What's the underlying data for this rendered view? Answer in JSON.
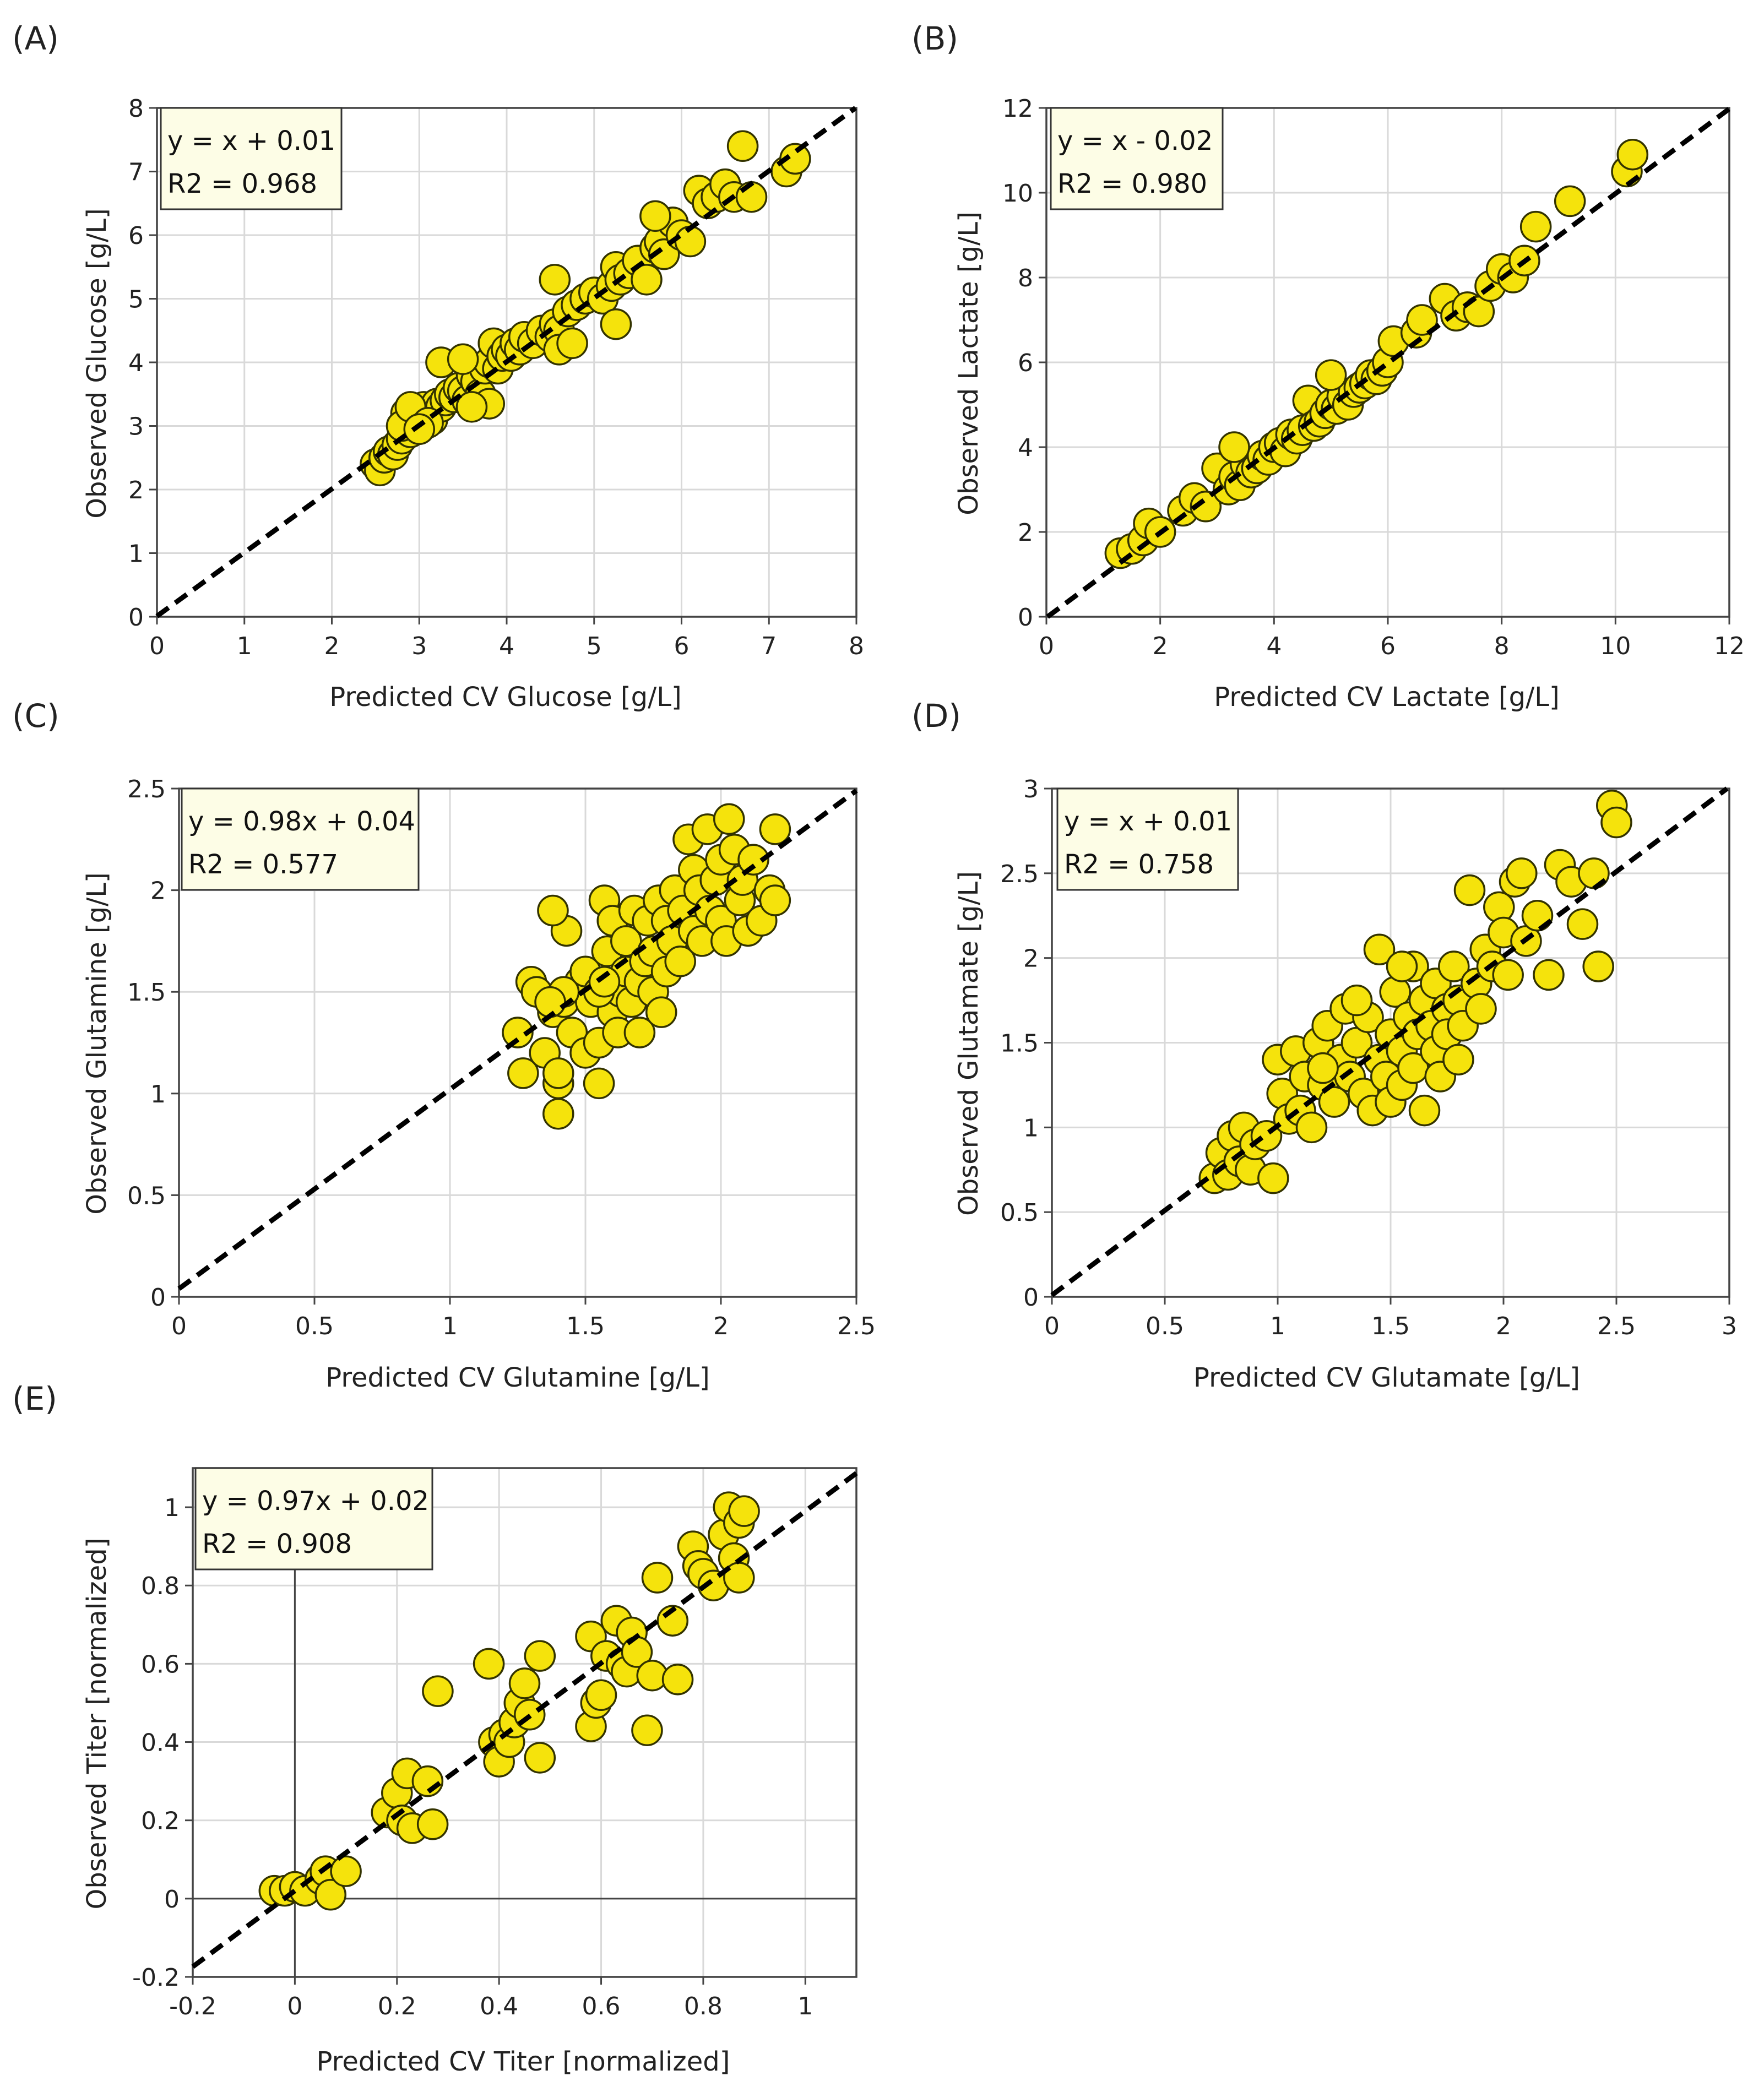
{
  "figure": {
    "panels": [
      {
        "label": "(A)",
        "equation": "y = x + 0.01",
        "r2": "R2 = 0.968"
      },
      {
        "label": "(B)",
        "equation": "y = x - 0.02",
        "r2": "R2 = 0.980"
      },
      {
        "label": "(C)",
        "equation": "y = 0.98x + 0.04",
        "r2": "R2 = 0.577"
      },
      {
        "label": "(D)",
        "equation": "y = x + 0.01",
        "r2": "R2 = 0.758"
      },
      {
        "label": "(E)",
        "equation": "y = 0.97x + 0.02",
        "r2": "R2 = 0.908"
      }
    ]
  },
  "colors": {
    "marker_fill": "#f5e30c",
    "marker_edge": "#333300",
    "box_fill": "#fdfde6",
    "grid": "#d9d9d9"
  },
  "chart_data": [
    {
      "type": "scatter",
      "panel": "(A)",
      "xlabel": "Predicted CV Glucose [g/L]",
      "ylabel": "Observed Glucose [g/L]",
      "xlim": [
        0,
        8
      ],
      "ylim": [
        0,
        8
      ],
      "xticks": [
        0,
        1,
        2,
        3,
        4,
        5,
        6,
        7,
        8
      ],
      "yticks": [
        0,
        1,
        2,
        3,
        4,
        5,
        6,
        7,
        8
      ],
      "fit": {
        "slope": 1.0,
        "intercept": 0.01
      },
      "annotation": [
        "y = x + 0.01",
        "R2 = 0.968"
      ],
      "x": [
        2.5,
        2.55,
        2.6,
        2.65,
        2.7,
        2.75,
        2.8,
        2.85,
        2.9,
        2.95,
        3.0,
        3.05,
        3.1,
        3.15,
        3.2,
        3.25,
        3.3,
        3.35,
        3.4,
        3.45,
        3.5,
        3.55,
        3.6,
        3.65,
        3.7,
        3.75,
        3.8,
        3.85,
        3.9,
        3.95,
        4.0,
        4.05,
        4.1,
        4.15,
        4.2,
        4.3,
        4.4,
        4.5,
        4.55,
        4.6,
        4.7,
        4.8,
        4.9,
        5.0,
        5.1,
        5.2,
        5.25,
        5.3,
        5.4,
        5.5,
        5.6,
        5.7,
        5.75,
        5.8,
        5.9,
        6.0,
        6.1,
        6.2,
        6.3,
        6.4,
        6.5,
        6.6,
        6.7,
        6.8,
        7.2,
        7.3,
        3.25,
        4.55,
        5.25,
        3.8,
        2.8,
        2.9,
        3.1,
        3.0,
        3.5,
        3.6,
        4.6,
        4.75,
        5.7
      ],
      "y": [
        2.4,
        2.3,
        2.5,
        2.6,
        2.55,
        2.7,
        2.8,
        3.2,
        2.9,
        3.1,
        3.0,
        3.3,
        3.2,
        3.1,
        3.35,
        3.3,
        3.4,
        3.5,
        3.45,
        3.6,
        3.55,
        3.4,
        3.8,
        3.7,
        3.5,
        3.9,
        4.0,
        4.3,
        3.9,
        4.1,
        4.2,
        4.1,
        4.3,
        4.2,
        4.4,
        4.3,
        4.5,
        4.4,
        4.6,
        4.5,
        4.8,
        4.9,
        5.0,
        5.1,
        5.0,
        5.2,
        5.5,
        5.3,
        5.4,
        5.6,
        5.3,
        5.8,
        5.9,
        5.7,
        6.2,
        6.0,
        5.9,
        6.7,
        6.5,
        6.6,
        6.8,
        6.6,
        7.4,
        6.6,
        7.0,
        7.2,
        4.0,
        5.3,
        4.6,
        3.35,
        3.0,
        3.3,
        3.05,
        2.95,
        4.05,
        3.3,
        4.2,
        4.3,
        6.3
      ]
    },
    {
      "type": "scatter",
      "panel": "(B)",
      "xlabel": "Predicted CV Lactate [g/L]",
      "ylabel": "Observed Lactate [g/L]",
      "xlim": [
        0,
        12
      ],
      "ylim": [
        0,
        12
      ],
      "xticks": [
        0,
        2,
        4,
        6,
        8,
        10,
        12
      ],
      "yticks": [
        0,
        2,
        4,
        6,
        8,
        10,
        12
      ],
      "fit": {
        "slope": 1.0,
        "intercept": -0.02
      },
      "annotation": [
        "y = x - 0.02",
        "R2 = 0.980"
      ],
      "x": [
        1.3,
        1.5,
        1.7,
        1.8,
        2.0,
        2.4,
        2.6,
        2.8,
        3.0,
        3.2,
        3.3,
        3.4,
        3.5,
        3.6,
        3.7,
        3.8,
        3.9,
        4.0,
        4.1,
        4.2,
        4.3,
        4.4,
        4.5,
        4.6,
        4.7,
        4.8,
        4.9,
        5.0,
        5.1,
        5.2,
        5.3,
        5.4,
        5.5,
        5.6,
        5.7,
        5.8,
        5.9,
        6.0,
        6.1,
        6.5,
        6.6,
        7.0,
        7.2,
        7.4,
        7.6,
        7.8,
        8.0,
        8.2,
        8.4,
        8.6,
        9.2,
        10.2,
        10.3,
        3.3,
        5.0
      ],
      "y": [
        1.5,
        1.6,
        1.8,
        2.2,
        2.0,
        2.5,
        2.8,
        2.6,
        3.5,
        3.0,
        3.3,
        3.1,
        3.6,
        3.4,
        3.5,
        3.8,
        3.7,
        4.0,
        4.1,
        3.9,
        4.3,
        4.2,
        4.4,
        5.1,
        4.5,
        4.6,
        4.8,
        5.0,
        4.9,
        5.2,
        5.0,
        5.3,
        5.4,
        5.5,
        5.7,
        5.6,
        5.8,
        6.0,
        6.5,
        6.7,
        7.0,
        7.5,
        7.1,
        7.3,
        7.2,
        7.8,
        8.2,
        8.0,
        8.4,
        9.2,
        9.8,
        10.5,
        10.9,
        4.0,
        5.7
      ]
    },
    {
      "type": "scatter",
      "panel": "(C)",
      "xlabel": "Predicted CV Glutamine [g/L]",
      "ylabel": "Observed Glutamine [g/L]",
      "xlim": [
        0,
        2.5
      ],
      "ylim": [
        0,
        2.5
      ],
      "xticks": [
        0,
        0.5,
        1,
        1.5,
        2,
        2.5
      ],
      "yticks": [
        0,
        0.5,
        1,
        1.5,
        2,
        2.5
      ],
      "fit": {
        "slope": 0.98,
        "intercept": 0.04
      },
      "annotation": [
        "y = 0.98x + 0.04",
        "R2 = 0.577"
      ],
      "x": [
        1.25,
        1.27,
        1.3,
        1.32,
        1.35,
        1.38,
        1.4,
        1.4,
        1.42,
        1.43,
        1.45,
        1.48,
        1.5,
        1.5,
        1.52,
        1.55,
        1.55,
        1.57,
        1.58,
        1.6,
        1.6,
        1.62,
        1.63,
        1.65,
        1.65,
        1.67,
        1.68,
        1.7,
        1.7,
        1.72,
        1.73,
        1.75,
        1.75,
        1.77,
        1.78,
        1.8,
        1.8,
        1.82,
        1.83,
        1.85,
        1.86,
        1.88,
        1.9,
        1.9,
        1.92,
        1.93,
        1.95,
        1.96,
        1.98,
        2.0,
        2.0,
        2.02,
        2.03,
        2.05,
        2.07,
        2.08,
        2.1,
        2.12,
        2.15,
        2.18,
        2.2,
        2.2,
        1.38,
        1.42,
        1.55,
        1.57,
        1.4,
        1.37
      ],
      "y": [
        1.3,
        1.1,
        1.55,
        1.5,
        1.2,
        1.4,
        1.05,
        0.9,
        1.45,
        1.8,
        1.3,
        1.55,
        1.6,
        1.2,
        1.45,
        1.25,
        1.05,
        1.95,
        1.7,
        1.4,
        1.85,
        1.3,
        1.5,
        1.6,
        1.75,
        1.45,
        1.9,
        1.55,
        1.3,
        1.65,
        1.85,
        1.5,
        1.7,
        1.95,
        1.4,
        1.6,
        1.85,
        1.75,
        2.0,
        1.65,
        1.9,
        2.25,
        1.8,
        2.1,
        2.0,
        1.75,
        2.3,
        1.9,
        2.05,
        1.85,
        2.15,
        1.75,
        2.35,
        2.2,
        1.95,
        2.05,
        1.8,
        2.15,
        1.85,
        2.0,
        2.3,
        1.95,
        1.9,
        1.5,
        1.5,
        1.55,
        1.1,
        1.45
      ]
    },
    {
      "type": "scatter",
      "panel": "(D)",
      "xlabel": "Predicted CV Glutamate [g/L]",
      "ylabel": "Observed Glutamate [g/L]",
      "xlim": [
        0,
        3
      ],
      "ylim": [
        0,
        3
      ],
      "xticks": [
        0,
        0.5,
        1,
        1.5,
        2,
        2.5,
        3
      ],
      "yticks": [
        0,
        0.5,
        1,
        1.5,
        2,
        2.5,
        3
      ],
      "fit": {
        "slope": 1.0,
        "intercept": 0.01
      },
      "annotation": [
        "y = x + 0.01",
        "R2 = 0.758"
      ],
      "x": [
        0.72,
        0.75,
        0.78,
        0.8,
        0.83,
        0.85,
        0.88,
        0.9,
        0.95,
        0.98,
        1.0,
        1.02,
        1.05,
        1.08,
        1.1,
        1.12,
        1.15,
        1.18,
        1.2,
        1.22,
        1.25,
        1.28,
        1.3,
        1.32,
        1.35,
        1.38,
        1.4,
        1.42,
        1.45,
        1.45,
        1.48,
        1.5,
        1.5,
        1.52,
        1.55,
        1.55,
        1.58,
        1.6,
        1.6,
        1.62,
        1.65,
        1.65,
        1.68,
        1.7,
        1.7,
        1.72,
        1.75,
        1.75,
        1.78,
        1.8,
        1.8,
        1.82,
        1.85,
        1.88,
        1.9,
        1.92,
        1.95,
        1.98,
        2.0,
        2.02,
        2.05,
        2.08,
        2.1,
        2.15,
        2.2,
        2.25,
        2.3,
        2.35,
        2.4,
        2.42,
        2.48,
        2.5,
        1.2,
        1.35,
        1.55
      ],
      "y": [
        0.7,
        0.85,
        0.72,
        0.95,
        0.8,
        1.0,
        0.75,
        0.9,
        0.95,
        0.7,
        1.4,
        1.2,
        1.05,
        1.45,
        1.1,
        1.3,
        1.0,
        1.5,
        1.25,
        1.6,
        1.15,
        1.4,
        1.7,
        1.3,
        1.5,
        1.2,
        1.65,
        1.1,
        1.4,
        2.05,
        1.3,
        1.55,
        1.15,
        1.8,
        1.45,
        1.25,
        1.65,
        1.95,
        1.35,
        1.55,
        1.75,
        1.1,
        1.6,
        1.45,
        1.85,
        1.3,
        1.7,
        1.55,
        1.95,
        1.4,
        1.75,
        1.6,
        2.4,
        1.85,
        1.7,
        2.05,
        1.95,
        2.3,
        2.15,
        1.9,
        2.45,
        2.5,
        2.1,
        2.25,
        1.9,
        2.55,
        2.45,
        2.2,
        2.5,
        1.95,
        2.9,
        2.8,
        1.35,
        1.75,
        1.95
      ]
    },
    {
      "type": "scatter",
      "panel": "(E)",
      "xlabel": "Predicted CV Titer [normalized]",
      "ylabel": "Observed Titer [normalized]",
      "xlim": [
        -0.2,
        1.1
      ],
      "ylim": [
        -0.2,
        1.1
      ],
      "xticks": [
        -0.2,
        0,
        0.2,
        0.4,
        0.6,
        0.8,
        1
      ],
      "yticks": [
        -0.2,
        0,
        0.2,
        0.4,
        0.6,
        0.8,
        1
      ],
      "fit": {
        "slope": 0.97,
        "intercept": 0.02
      },
      "annotation": [
        "y = 0.97x + 0.02",
        "R2 = 0.908"
      ],
      "x": [
        -0.04,
        -0.02,
        0.0,
        0.02,
        0.05,
        0.06,
        0.07,
        0.1,
        0.18,
        0.2,
        0.21,
        0.22,
        0.23,
        0.26,
        0.27,
        0.28,
        0.38,
        0.39,
        0.4,
        0.41,
        0.42,
        0.43,
        0.44,
        0.45,
        0.46,
        0.48,
        0.48,
        0.58,
        0.58,
        0.59,
        0.6,
        0.61,
        0.63,
        0.64,
        0.65,
        0.66,
        0.67,
        0.69,
        0.7,
        0.71,
        0.74,
        0.75,
        0.78,
        0.79,
        0.8,
        0.82,
        0.84,
        0.85,
        0.86,
        0.87,
        0.87,
        0.88
      ],
      "y": [
        0.02,
        0.02,
        0.03,
        0.02,
        0.05,
        0.07,
        0.01,
        0.07,
        0.22,
        0.27,
        0.2,
        0.32,
        0.18,
        0.3,
        0.19,
        0.53,
        0.6,
        0.4,
        0.35,
        0.42,
        0.4,
        0.45,
        0.5,
        0.55,
        0.47,
        0.62,
        0.36,
        0.67,
        0.44,
        0.5,
        0.52,
        0.62,
        0.71,
        0.6,
        0.58,
        0.68,
        0.63,
        0.43,
        0.57,
        0.82,
        0.71,
        0.56,
        0.9,
        0.85,
        0.83,
        0.8,
        0.93,
        1.0,
        0.87,
        0.96,
        0.82,
        0.99
      ]
    }
  ]
}
